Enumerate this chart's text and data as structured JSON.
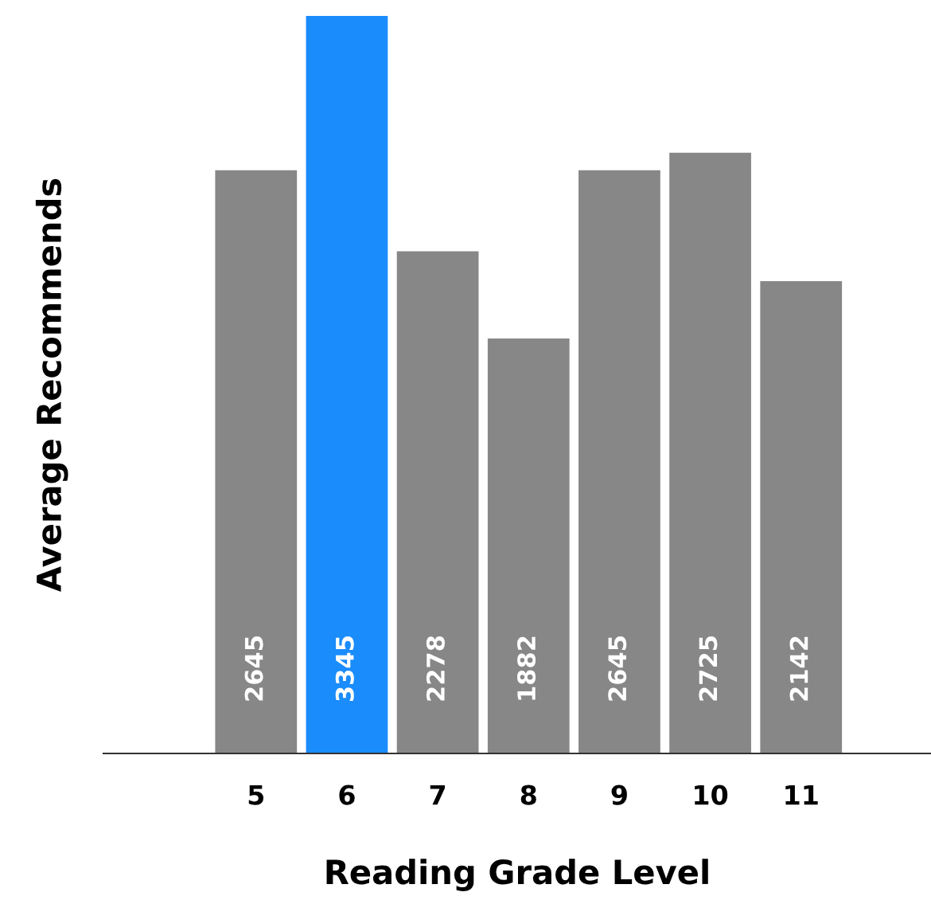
{
  "chart_data": {
    "type": "bar",
    "xlabel": "Reading Grade Level",
    "ylabel": "Average Recommends",
    "categories": [
      "5",
      "6",
      "7",
      "8",
      "9",
      "10",
      "11"
    ],
    "values": [
      2645,
      3345,
      2278,
      1882,
      2645,
      2725,
      2142
    ],
    "data_labels": true,
    "colors": [
      "#878787",
      "#1a8cfc",
      "#878787",
      "#878787",
      "#878787",
      "#878787",
      "#878787"
    ],
    "grid": false,
    "legend": false
  }
}
